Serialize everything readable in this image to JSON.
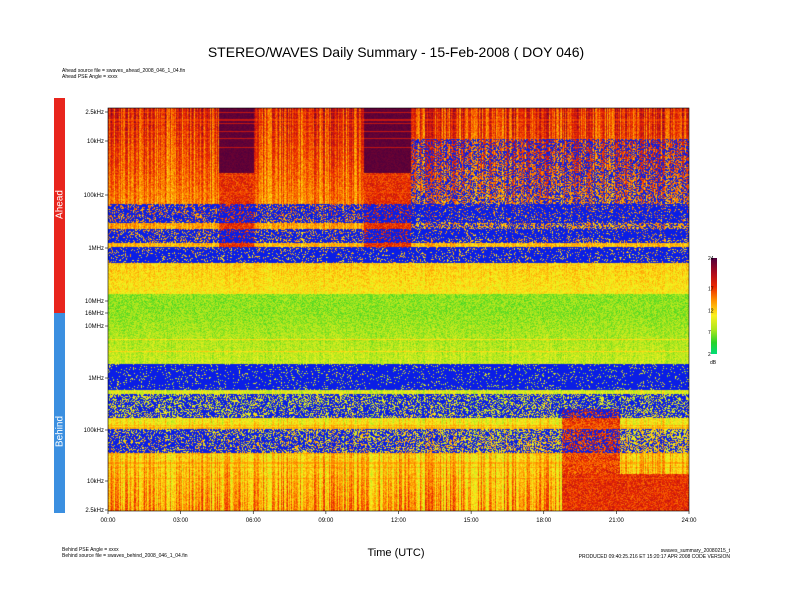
{
  "header": {
    "title": "STEREO/WAVES Daily Summary - 15-Feb-2008 ( DOY 046)",
    "ahead_source": "Ahead source file = swaves_ahead_2008_046_1_04.fin",
    "ahead_pse": "Ahead PSE Angle = xxxx",
    "behind_pse": "Behind PSE Angle = xxxx",
    "behind_source": "Behind source file = swaves_behind_2008_046_1_04.fin",
    "summary_file": "swaves_summary_20080215_t",
    "production_note": "PRODUCED 09:40:25.216 ET 15:20:17 APR 2008 CODE VERSION"
  },
  "panels": {
    "ahead_label": "Ahead",
    "behind_label": "Behind"
  },
  "chart_data": {
    "type": "heatmap",
    "title": "STEREO/WAVES Daily Summary - 15-Feb-2008 ( DOY 046)",
    "xlabel": "Time (UTC)",
    "x_ticks": [
      "00:00",
      "03:00",
      "06:00",
      "09:00",
      "12:00",
      "15:00",
      "18:00",
      "21:00",
      "24:00"
    ],
    "xlim": [
      0,
      24
    ],
    "ahead_y_ticks": [
      "2.5kHz",
      "10kHz",
      "100kHz",
      "1MHz",
      "10MHz",
      "16MHz"
    ],
    "behind_y_ticks": [
      "10MHz",
      "1MHz",
      "100kHz",
      "10kHz",
      "2.5kHz"
    ],
    "y_scale": "log",
    "colorbar": {
      "ticks": [
        "24",
        "17",
        "12",
        "7",
        "2"
      ],
      "unit": "dB",
      "range": [
        2,
        24
      ]
    }
  },
  "colors": {
    "ahead_bar": "#e8251d",
    "behind_bar": "#3b8fe0"
  }
}
